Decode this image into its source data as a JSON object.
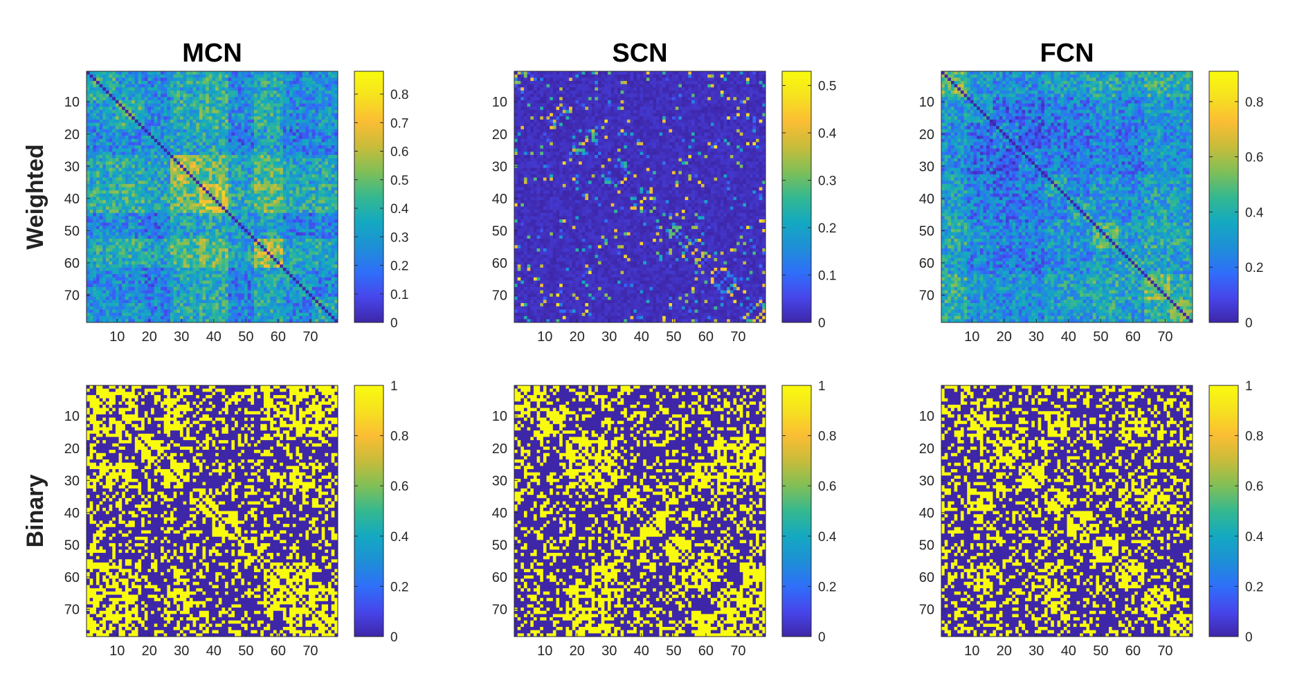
{
  "chart_data": [
    {
      "id": "mcn-weighted",
      "type": "heatmap",
      "title": "MCN",
      "row_label": "Weighted",
      "n": 78,
      "style": "weighted",
      "xticks": [
        10,
        20,
        30,
        40,
        50,
        60,
        70
      ],
      "yticks": [
        10,
        20,
        30,
        40,
        50,
        60,
        70
      ],
      "clim": [
        0,
        0.88
      ],
      "cbar_ticks": [
        0,
        0.1,
        0.2,
        0.3,
        0.4,
        0.5,
        0.6,
        0.7,
        0.8
      ],
      "cbar_labels": [
        "0",
        "0.1",
        "0.2",
        "0.3",
        "0.4",
        "0.5",
        "0.6",
        "0.7",
        "0.8"
      ],
      "diagonal": 0,
      "mean_value": 0.42,
      "seed": 11
    },
    {
      "id": "scn-weighted",
      "type": "heatmap",
      "title": "SCN",
      "row_label": "",
      "n": 78,
      "style": "sparse",
      "xticks": [
        10,
        20,
        30,
        40,
        50,
        60,
        70
      ],
      "yticks": [
        10,
        20,
        30,
        40,
        50,
        60,
        70
      ],
      "clim": [
        0,
        0.53
      ],
      "cbar_ticks": [
        0,
        0.1,
        0.2,
        0.3,
        0.4,
        0.5
      ],
      "cbar_labels": [
        "0",
        "0.1",
        "0.2",
        "0.3",
        "0.4",
        "0.5"
      ],
      "diagonal": 0,
      "mean_value": 0.05,
      "seed": 23
    },
    {
      "id": "fcn-weighted",
      "type": "heatmap",
      "title": "FCN",
      "row_label": "",
      "n": 78,
      "style": "weighted",
      "xticks": [
        10,
        20,
        30,
        40,
        50,
        60,
        70
      ],
      "yticks": [
        10,
        20,
        30,
        40,
        50,
        60,
        70
      ],
      "clim": [
        0,
        0.91
      ],
      "cbar_ticks": [
        0,
        0.2,
        0.4,
        0.6,
        0.8
      ],
      "cbar_labels": [
        "0",
        "0.2",
        "0.4",
        "0.6",
        "0.8"
      ],
      "diagonal": 0,
      "mean_value": 0.38,
      "seed": 37
    },
    {
      "id": "mcn-binary",
      "type": "heatmap",
      "title": "",
      "row_label": "Binary",
      "n": 78,
      "style": "binary",
      "xticks": [
        10,
        20,
        30,
        40,
        50,
        60,
        70
      ],
      "yticks": [
        10,
        20,
        30,
        40,
        50,
        60,
        70
      ],
      "clim": [
        0,
        1
      ],
      "cbar_ticks": [
        0,
        0.2,
        0.4,
        0.6,
        0.8,
        1
      ],
      "cbar_labels": [
        "0",
        "0.2",
        "0.4",
        "0.6",
        "0.8",
        "1"
      ],
      "values": [
        0,
        1
      ],
      "density": 0.5,
      "seed": 41
    },
    {
      "id": "scn-binary",
      "type": "heatmap",
      "title": "",
      "row_label": "",
      "n": 78,
      "style": "binary",
      "xticks": [
        10,
        20,
        30,
        40,
        50,
        60,
        70
      ],
      "yticks": [
        10,
        20,
        30,
        40,
        50,
        60,
        70
      ],
      "clim": [
        0,
        1
      ],
      "cbar_ticks": [
        0,
        0.2,
        0.4,
        0.6,
        0.8,
        1
      ],
      "cbar_labels": [
        "0",
        "0.2",
        "0.4",
        "0.6",
        "0.8",
        "1"
      ],
      "values": [
        0,
        1
      ],
      "density": 0.5,
      "seed": 53
    },
    {
      "id": "fcn-binary",
      "type": "heatmap",
      "title": "",
      "row_label": "",
      "n": 78,
      "style": "binary",
      "xticks": [
        10,
        20,
        30,
        40,
        50,
        60,
        70
      ],
      "yticks": [
        10,
        20,
        30,
        40,
        50,
        60,
        70
      ],
      "clim": [
        0,
        1
      ],
      "cbar_ticks": [
        0,
        0.2,
        0.4,
        0.6,
        0.8,
        1
      ],
      "cbar_labels": [
        "0",
        "0.2",
        "0.4",
        "0.6",
        "0.8",
        "1"
      ],
      "values": [
        0,
        1
      ],
      "density": 0.5,
      "seed": 67
    }
  ],
  "colormap": {
    "name": "parula",
    "stops": [
      "#3e26a8",
      "#4746eb",
      "#2f6ff9",
      "#1e8fd6",
      "#14a9c1",
      "#35b88f",
      "#80bf57",
      "#c8bc3a",
      "#fbbd34",
      "#f6e11f",
      "#f9fb0e"
    ]
  }
}
